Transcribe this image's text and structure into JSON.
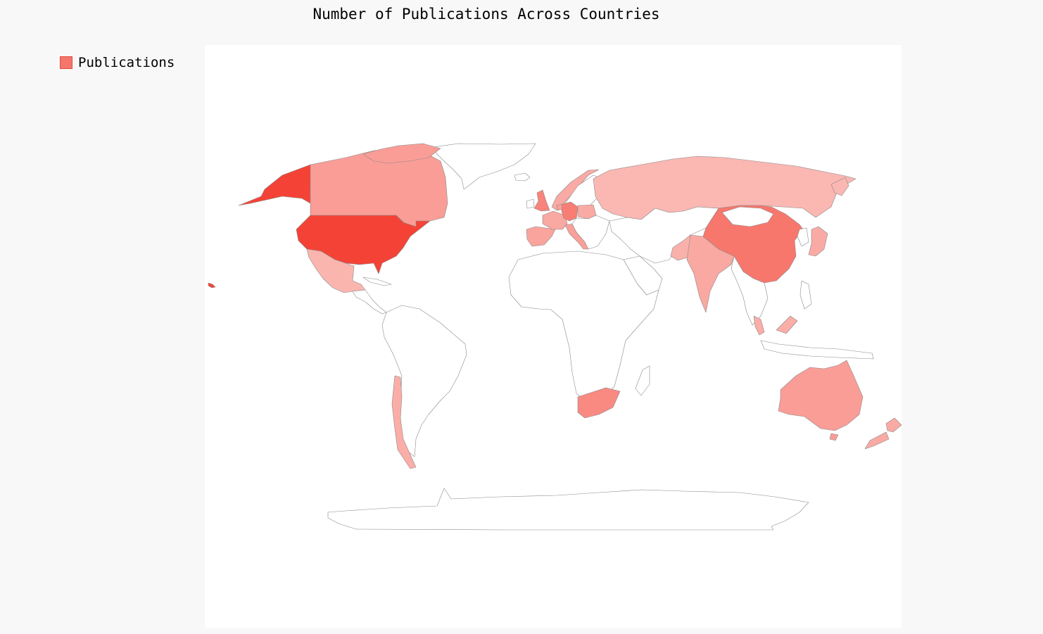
{
  "title": "Number of Publications Across Countries",
  "legend": {
    "label": "Publications",
    "color": "#f5766b"
  },
  "colors": {
    "base": "#ffffff",
    "min": "#fcc4c0",
    "max": "#f44336",
    "border": "#8a8a8a",
    "background": "#f8f8f8",
    "plot_background": "#ffffff"
  },
  "chart_data": {
    "type": "choropleth",
    "title": "Number of Publications Across Countries",
    "series": [
      {
        "name": "Publications",
        "intensity": {
          "United States": 1.0,
          "China": 0.6,
          "Germany": 0.55,
          "United Kingdom": 0.5,
          "South Africa": 0.45,
          "Canada": 0.3,
          "Australia": 0.3,
          "Italy": 0.28,
          "Netherlands": 0.28,
          "Spain": 0.25,
          "France": 0.22,
          "India": 0.22,
          "Norway": 0.2,
          "Poland": 0.2,
          "Japan": 0.2,
          "New Zealand": 0.2,
          "Chile": 0.18,
          "Malaysia": 0.18,
          "Pakistan": 0.15,
          "Mexico": 0.12,
          "Russia": 0.1
        }
      }
    ]
  }
}
